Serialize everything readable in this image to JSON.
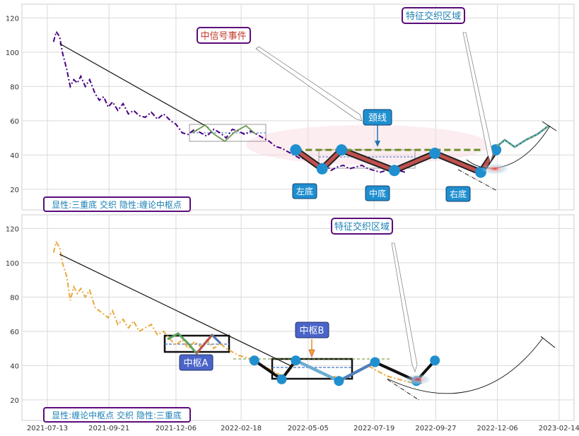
{
  "chart_data": [
    {
      "type": "line",
      "x_range": [
        "2021-07-13",
        "2023-02-28"
      ],
      "ylim": [
        8,
        128
      ],
      "yticks": [
        20,
        40,
        60,
        80,
        100,
        120
      ],
      "grid": true,
      "series": [
        {
          "x": [
            "2021-07-20",
            "2021-07-23",
            "2021-07-27",
            "2021-07-30",
            "2021-08-04",
            "2021-08-08",
            "2021-08-12",
            "2021-08-16",
            "2021-08-20",
            "2021-08-25",
            "2021-08-30",
            "2021-09-05",
            "2021-09-10",
            "2021-09-15",
            "2021-09-20",
            "2021-09-25",
            "2021-10-01",
            "2021-10-07",
            "2021-10-13",
            "2021-10-19",
            "2021-10-25",
            "2021-11-01",
            "2021-11-08",
            "2021-11-15",
            "2021-11-22",
            "2021-11-30",
            "2021-12-06",
            "2021-12-13",
            "2021-12-20",
            "2021-12-27",
            "2022-01-03",
            "2022-01-10",
            "2022-01-18",
            "2022-01-25",
            "2022-02-01",
            "2022-02-08",
            "2022-02-15",
            "2022-02-22",
            "2022-03-01",
            "2022-03-08",
            "2022-03-15",
            "2022-03-22",
            "2022-03-29",
            "2022-04-05",
            "2022-04-12",
            "2022-04-19",
            "2022-04-26",
            "2022-05-03",
            "2022-05-10",
            "2022-05-17",
            "2022-05-24",
            "2022-05-31",
            "2022-06-07",
            "2022-06-14",
            "2022-06-21",
            "2022-06-28",
            "2022-07-05",
            "2022-07-12",
            "2022-07-19",
            "2022-07-26",
            "2022-08-02",
            "2022-08-09",
            "2022-08-16",
            "2022-08-23"
          ],
          "values": [
            106,
            112,
            109,
            100,
            90,
            80,
            84,
            82,
            86,
            80,
            84,
            76,
            72,
            74,
            68,
            71,
            66,
            70,
            64,
            66,
            63,
            62,
            65,
            61,
            64,
            60,
            58,
            53,
            52,
            55,
            53,
            51,
            55,
            53,
            50,
            55,
            54,
            52,
            54,
            52,
            50,
            48,
            45,
            44,
            42,
            40,
            38,
            38,
            36,
            33,
            35,
            31,
            33,
            34,
            32,
            33,
            34,
            32,
            31,
            30,
            31,
            32,
            31,
            30
          ]
        }
      ],
      "labels": {
        "legend": "显性:三重底 交织 隐性:缠论中枢点",
        "event": "中信号事件",
        "zone": "特征交织区域",
        "neckline": "颈线",
        "left_bottom": "左底",
        "mid_bottom": "中底",
        "right_bottom": "右底"
      },
      "pivots": {
        "x": [
          "2022-04-21",
          "2022-05-21",
          "2022-06-12",
          "2022-08-11",
          "2022-09-26",
          "2022-11-17",
          "2022-12-04"
        ],
        "values": [
          43,
          32,
          43,
          31,
          41,
          30,
          43
        ]
      },
      "neckline_y": 43,
      "trendline": {
        "x": [
          "2021-07-27",
          "2022-01-12"
        ],
        "values": [
          105,
          56
        ]
      }
    },
    {
      "type": "line",
      "x_range": [
        "2021-07-13",
        "2023-02-28"
      ],
      "ylim": [
        8,
        128
      ],
      "yticks": [
        20,
        40,
        60,
        80,
        100,
        120
      ],
      "xticks": [
        "2021-07-13",
        "2021-09-21",
        "2021-12-06",
        "2022-02-18",
        "2022-05-05",
        "2022-07-19",
        "2022-09-27",
        "2022-12-06",
        "2023-02-14"
      ],
      "grid": true,
      "series": [
        {
          "x": [
            "2021-07-20",
            "2021-07-23",
            "2021-07-27",
            "2021-07-30",
            "2021-08-04",
            "2021-08-08",
            "2021-08-12",
            "2021-08-16",
            "2021-08-20",
            "2021-08-25",
            "2021-08-30",
            "2021-09-05",
            "2021-09-10",
            "2021-09-15",
            "2021-09-20",
            "2021-09-25",
            "2021-10-01",
            "2021-10-07",
            "2021-10-13",
            "2021-10-19",
            "2021-10-25",
            "2021-11-01",
            "2021-11-08",
            "2021-11-15",
            "2021-11-22",
            "2021-11-30",
            "2021-12-06",
            "2021-12-13",
            "2021-12-20",
            "2021-12-27",
            "2022-01-03",
            "2022-01-10",
            "2022-01-18",
            "2022-01-25",
            "2022-02-01",
            "2022-02-08",
            "2022-02-15",
            "2022-02-22",
            "2022-03-01",
            "2022-03-08",
            "2022-03-15",
            "2022-03-22",
            "2022-03-29",
            "2022-04-05",
            "2022-04-12",
            "2022-04-19",
            "2022-04-26",
            "2022-05-03",
            "2022-05-10",
            "2022-05-17",
            "2022-05-24",
            "2022-05-31",
            "2022-06-07",
            "2022-06-14",
            "2022-06-21",
            "2022-06-28",
            "2022-07-05",
            "2022-07-12",
            "2022-07-19",
            "2022-07-26",
            "2022-08-02",
            "2022-08-09",
            "2022-08-16",
            "2022-08-23",
            "2022-08-30",
            "2022-09-06",
            "2022-09-13"
          ],
          "values": [
            106,
            112,
            109,
            100,
            92,
            78,
            86,
            82,
            85,
            80,
            84,
            74,
            72,
            70,
            68,
            72,
            64,
            67,
            62,
            66,
            60,
            62,
            64,
            58,
            60,
            55,
            52,
            55,
            50,
            54,
            51,
            55,
            50,
            53,
            50,
            48,
            46,
            45,
            44,
            42,
            40,
            38,
            36,
            34,
            36,
            40,
            42,
            40,
            38,
            36,
            35,
            33,
            34,
            32,
            34,
            36,
            38,
            40,
            38,
            36,
            34,
            33,
            32,
            31,
            30,
            31,
            29
          ]
        }
      ],
      "labels": {
        "legend": "显性:缠论中枢点 交织 隐性:三重底",
        "zone": "特征交织区域",
        "pivot_a": "中枢A",
        "pivot_b": "中枢B"
      },
      "pivots": {
        "x": [
          "2022-03-05",
          "2022-04-05",
          "2022-04-21",
          "2022-06-09",
          "2022-07-20",
          "2022-09-05",
          "2022-09-26"
        ],
        "values": [
          43,
          32,
          43,
          31,
          42,
          31,
          43
        ]
      },
      "trendline": {
        "x": [
          "2021-07-27",
          "2022-04-15"
        ],
        "values": [
          105,
          40
        ]
      }
    }
  ]
}
